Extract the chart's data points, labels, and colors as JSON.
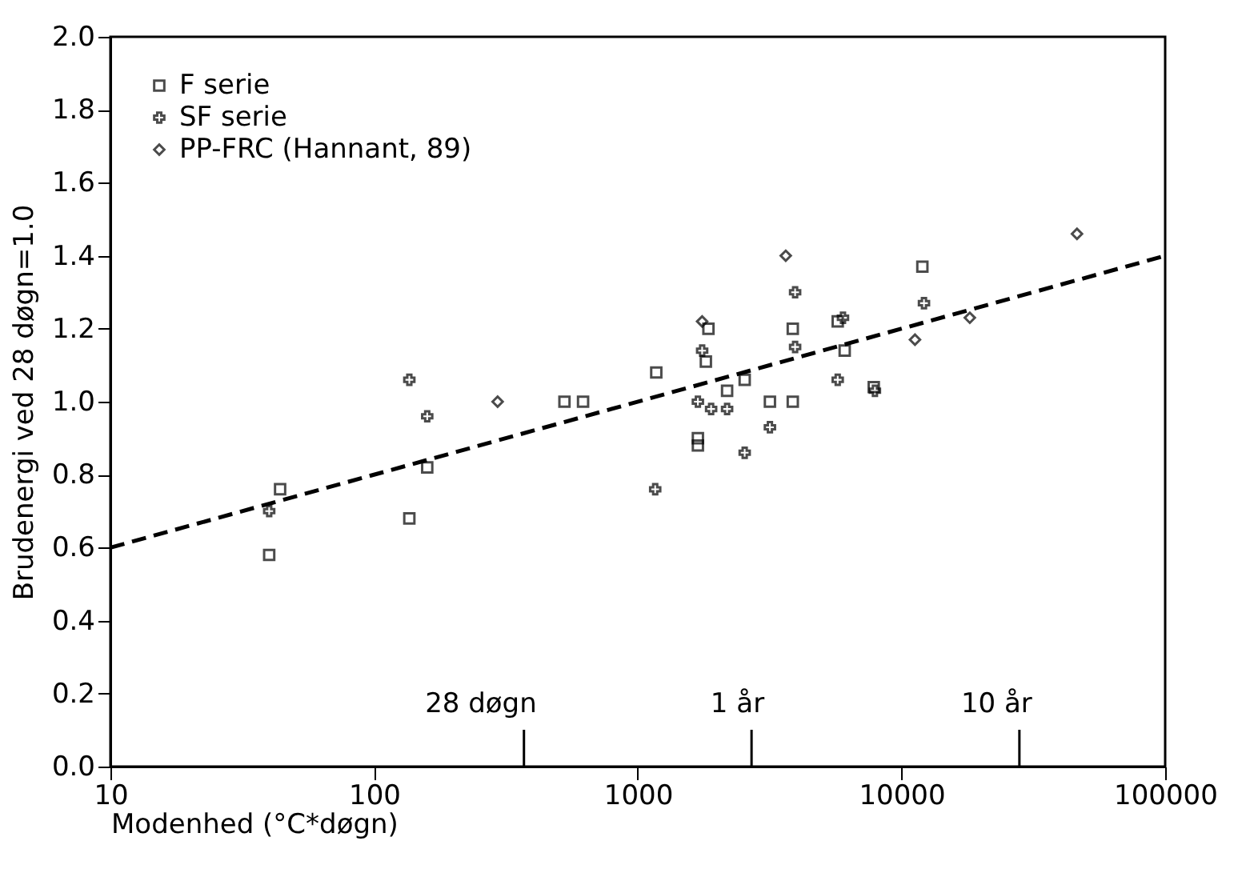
{
  "chart_data": {
    "type": "scatter",
    "xlabel": "Modenhed (°C*døgn)",
    "ylabel": "Brudenergi ved 28 døgn=1.0",
    "log": "x",
    "xlim": [
      10,
      100000
    ],
    "xticks": [
      10,
      100,
      1000,
      10000,
      100000
    ],
    "ylim": [
      0,
      2
    ],
    "yticks": [
      {
        "value": 0,
        "label": "0.0"
      },
      {
        "value": 0.2,
        "label": "0.2"
      },
      {
        "value": 0.4,
        "label": "0.4"
      },
      {
        "value": 0.6,
        "label": "0.6"
      },
      {
        "value": 0.8,
        "label": "0.8"
      },
      {
        "value": 1,
        "label": "1.0"
      },
      {
        "value": 1.2,
        "label": "1.2"
      },
      {
        "value": 1.4,
        "label": "1.4"
      },
      {
        "value": 1.6,
        "label": "1.6"
      },
      {
        "value": 1.8,
        "label": "1.8"
      },
      {
        "value": 2,
        "label": "2.0"
      }
    ],
    "grid": false,
    "legend": "top left",
    "series": [
      {
        "name": "F serie",
        "color": "#000000",
        "marker": "square",
        "x": [
          40,
          44,
          136,
          159,
          527,
          620,
          1175,
          1690,
          1690,
          1812,
          1853,
          2181,
          2543,
          3170,
          3870,
          3870,
          5730,
          6090,
          7850,
          12000
        ],
        "values": [
          0.58,
          0.76,
          0.68,
          0.82,
          1.0,
          1.0,
          1.08,
          0.9,
          0.88,
          1.11,
          1.2,
          1.03,
          1.06,
          1.0,
          1.2,
          1.0,
          1.22,
          1.14,
          1.04,
          1.37
        ]
      },
      {
        "name": "SF serie",
        "color": "#000000",
        "marker": "cross",
        "x": [
          40,
          136,
          159,
          1164,
          1690,
          1754,
          1897,
          2181,
          2543,
          3170,
          3950,
          3950,
          5730,
          6000,
          7930,
          12170
        ],
        "values": [
          0.7,
          1.06,
          0.96,
          0.76,
          1.0,
          1.14,
          0.98,
          0.98,
          0.86,
          0.93,
          1.3,
          1.15,
          1.06,
          1.23,
          1.03,
          1.27
        ]
      },
      {
        "name": "PP-FRC (Hannant, 89)",
        "color": "#000000",
        "marker": "diamond",
        "x": [
          294,
          1754,
          3640,
          11250,
          18160,
          46300
        ],
        "values": [
          1.0,
          1.22,
          1.4,
          1.17,
          1.23,
          1.46
        ]
      },
      {
        "type": "line",
        "color": "#000000",
        "line_style": "dashed",
        "marker": "none",
        "x": [
          10,
          100000
        ],
        "values": [
          0.6,
          1.4
        ]
      }
    ],
    "ref_lines": [
      {
        "axis": "x",
        "value": 370,
        "label": "28 døgn"
      },
      {
        "axis": "x",
        "value": 2700,
        "label": "1 år"
      },
      {
        "axis": "x",
        "value": 28000,
        "label": "10 år"
      }
    ]
  }
}
